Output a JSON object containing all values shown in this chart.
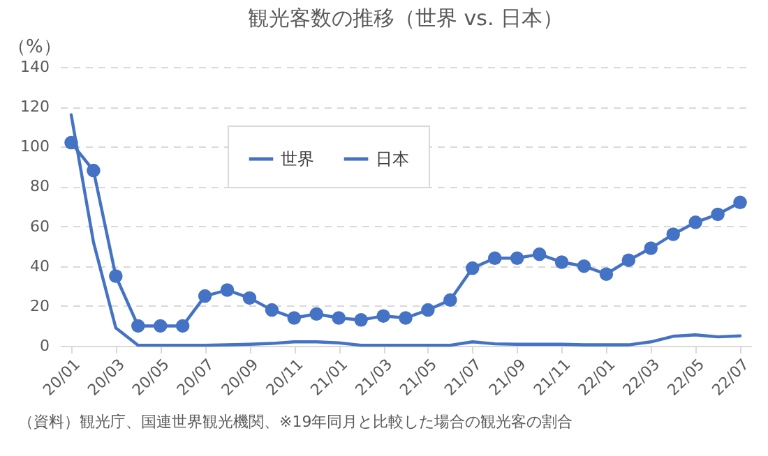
{
  "chart_data": {
    "type": "line",
    "title": "観光客数の推移（世界 vs. 日本）",
    "ylabel": "（%）",
    "categories": [
      "20/01",
      null,
      "20/03",
      null,
      "20/05",
      null,
      "20/07",
      null,
      "20/09",
      null,
      "20/11",
      null,
      "21/01",
      null,
      "21/03",
      null,
      "21/05",
      null,
      "21/07",
      null,
      "21/09",
      null,
      "21/11",
      null,
      "22/01",
      null,
      "22/03",
      null,
      "22/05",
      null,
      "22/07"
    ],
    "series": [
      {
        "name": "世界",
        "color": "#4472c4",
        "marker": "circle",
        "values": [
          102,
          88,
          35,
          10,
          10,
          10,
          25,
          28,
          24,
          18,
          14,
          16,
          14,
          13,
          15,
          14,
          18,
          23,
          39,
          44,
          44,
          46,
          42,
          40,
          36,
          43,
          49,
          56,
          62,
          66,
          72
        ]
      },
      {
        "name": "日本",
        "color": "#4472c4",
        "marker": "none",
        "values": [
          116,
          52,
          9,
          0.3,
          0.3,
          0.3,
          0.3,
          0.5,
          0.8,
          1.2,
          2,
          2,
          1.5,
          0.3,
          0.3,
          0.3,
          0.3,
          0.3,
          2,
          1,
          0.8,
          0.8,
          0.8,
          0.5,
          0.5,
          0.5,
          2,
          4.8,
          5.5,
          4.5,
          5
        ]
      }
    ],
    "ylim": [
      0,
      140
    ],
    "yticks": [
      0,
      20,
      40,
      60,
      80,
      100,
      120,
      140
    ],
    "grid": "y",
    "legend": "top",
    "annotations": [
      "（資料）観光庁、国連世界観光機関、※19年同月と比較した場合の観光客の割合"
    ]
  }
}
